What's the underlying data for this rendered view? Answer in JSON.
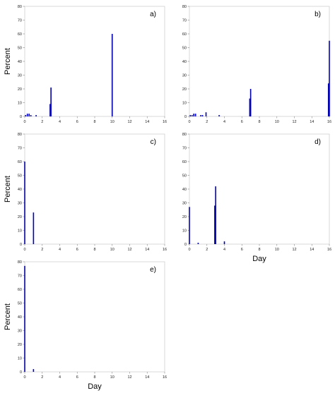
{
  "chart_data": [
    {
      "type": "bar",
      "panel_label": "a)",
      "xlabel": "",
      "ylabel": "Percent",
      "xlim": [
        0,
        16
      ],
      "ylim": [
        0,
        80
      ],
      "xticks": [
        "0",
        "2",
        "4",
        "6",
        "8",
        "10",
        "12",
        "14",
        "16"
      ],
      "yticks": [
        "0",
        "10",
        "20",
        "30",
        "40",
        "50",
        "60",
        "70",
        "80"
      ],
      "bar_color": "#0000cc",
      "x": [
        0.1,
        0.3,
        0.5,
        0.7,
        1.3,
        2.9,
        3.0,
        10.0
      ],
      "values": [
        1,
        2,
        2,
        1,
        1,
        9,
        21,
        60
      ]
    },
    {
      "type": "bar",
      "panel_label": "b)",
      "xlabel": "",
      "ylabel": "",
      "xlim": [
        0,
        16
      ],
      "ylim": [
        0,
        80
      ],
      "xticks": [
        "0",
        "2",
        "4",
        "6",
        "8",
        "10",
        "12",
        "14",
        "16"
      ],
      "yticks": [
        "0",
        "10",
        "20",
        "30",
        "40",
        "50",
        "60",
        "70",
        "80"
      ],
      "bar_color": "#0000cc",
      "x": [
        0.1,
        0.3,
        0.5,
        0.7,
        1.3,
        1.5,
        1.9,
        3.4,
        6.9,
        7.0,
        15.9,
        16.0
      ],
      "values": [
        1,
        1,
        2,
        2,
        1,
        1,
        3,
        1,
        13,
        20,
        24,
        55
      ]
    },
    {
      "type": "bar",
      "panel_label": "c)",
      "xlabel": "",
      "ylabel": "Percent",
      "xlim": [
        0,
        16
      ],
      "ylim": [
        0,
        80
      ],
      "xticks": [
        "0",
        "2",
        "4",
        "6",
        "8",
        "10",
        "12",
        "14",
        "16"
      ],
      "yticks": [
        "0",
        "10",
        "20",
        "30",
        "40",
        "50",
        "60",
        "70",
        "80"
      ],
      "bar_color": "#0000cc",
      "x": [
        0.0,
        1.0
      ],
      "values": [
        60,
        23
      ]
    },
    {
      "type": "bar",
      "panel_label": "d)",
      "xlabel": "Day",
      "ylabel": "",
      "xlim": [
        0,
        16
      ],
      "ylim": [
        0,
        80
      ],
      "xticks": [
        "0",
        "2",
        "4",
        "6",
        "8",
        "10",
        "12",
        "14",
        "16"
      ],
      "yticks": [
        "0",
        "10",
        "20",
        "30",
        "40",
        "50",
        "60",
        "70",
        "80"
      ],
      "bar_color": "#0000cc",
      "x": [
        0.0,
        1.0,
        2.9,
        3.0,
        4.0
      ],
      "values": [
        27,
        1,
        28,
        42,
        2
      ]
    },
    {
      "type": "bar",
      "panel_label": "e)",
      "xlabel": "Day",
      "ylabel": "Percent",
      "xlim": [
        0,
        16
      ],
      "ylim": [
        0,
        80
      ],
      "xticks": [
        "0",
        "2",
        "4",
        "6",
        "8",
        "10",
        "12",
        "14",
        "16"
      ],
      "yticks": [
        "0",
        "10",
        "20",
        "30",
        "40",
        "50",
        "60",
        "70",
        "80"
      ],
      "bar_color": "#0000cc",
      "x": [
        0.0,
        1.0
      ],
      "values": [
        77,
        2
      ]
    }
  ]
}
